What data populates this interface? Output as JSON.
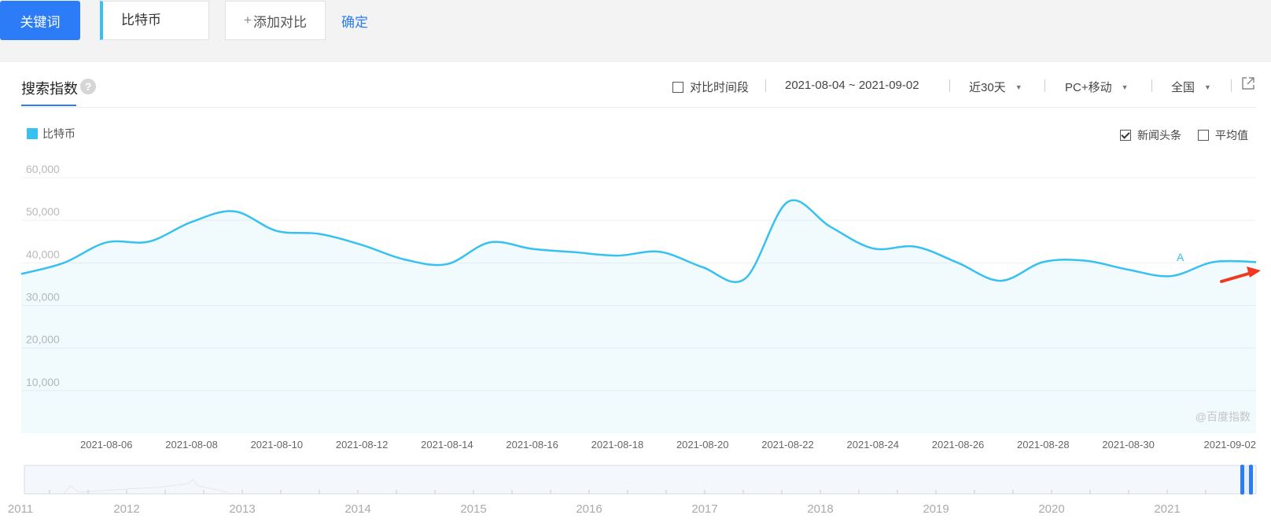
{
  "toolbar": {
    "keyword_button": "关键词",
    "keyword_value": "比特币",
    "add_compare_label": "添加对比",
    "confirm_label": "确定"
  },
  "panel": {
    "title": "搜索指数",
    "help_icon": "?",
    "compare_period_label": "对比时间段",
    "date_range": "2021-08-04 ~ 2021-09-02",
    "period_select": "近30天",
    "device_select": "PC+移动",
    "region_select": "全国",
    "share_icon": "external-link-icon"
  },
  "chart_options": {
    "news_headlines_label": "新闻头条",
    "news_headlines_checked": true,
    "average_label": "平均值",
    "average_checked": false
  },
  "chart_data": {
    "type": "area",
    "legend_entries": [
      "比特币"
    ],
    "series": [
      {
        "name": "比特币",
        "color": "#36c1f0",
        "x": [
          "2021-08-04",
          "2021-08-05",
          "2021-08-06",
          "2021-08-07",
          "2021-08-08",
          "2021-08-09",
          "2021-08-10",
          "2021-08-11",
          "2021-08-12",
          "2021-08-13",
          "2021-08-14",
          "2021-08-15",
          "2021-08-16",
          "2021-08-17",
          "2021-08-18",
          "2021-08-19",
          "2021-08-20",
          "2021-08-21",
          "2021-08-22",
          "2021-08-23",
          "2021-08-24",
          "2021-08-25",
          "2021-08-26",
          "2021-08-27",
          "2021-08-28",
          "2021-08-29",
          "2021-08-30",
          "2021-08-31",
          "2021-09-01",
          "2021-09-02"
        ],
        "values": [
          37400,
          40000,
          44800,
          45000,
          49600,
          52100,
          47500,
          46800,
          44200,
          40800,
          39700,
          44800,
          43300,
          42500,
          41700,
          42600,
          39000,
          36300,
          54300,
          48500,
          43400,
          43800,
          40000,
          35800,
          40200,
          40500,
          38400,
          36900,
          40200,
          40200
        ]
      }
    ],
    "x_tick_labels": [
      "2021-08-06",
      "2021-08-08",
      "2021-08-10",
      "2021-08-12",
      "2021-08-14",
      "2021-08-16",
      "2021-08-18",
      "2021-08-20",
      "2021-08-22",
      "2021-08-24",
      "2021-08-26",
      "2021-08-28",
      "2021-08-30",
      "2021-09-02"
    ],
    "y_tick_labels": [
      "10,000",
      "20,000",
      "30,000",
      "40,000",
      "50,000",
      "60,000"
    ],
    "ylim": [
      0,
      60000
    ],
    "grid": true,
    "annotations": [
      {
        "label": "A",
        "x": "2021-08-31"
      }
    ],
    "watermark": "@百度指数",
    "overview_years": [
      "2011",
      "2012",
      "2013",
      "2014",
      "2015",
      "2016",
      "2017",
      "2018",
      "2019",
      "2020",
      "2021"
    ]
  }
}
